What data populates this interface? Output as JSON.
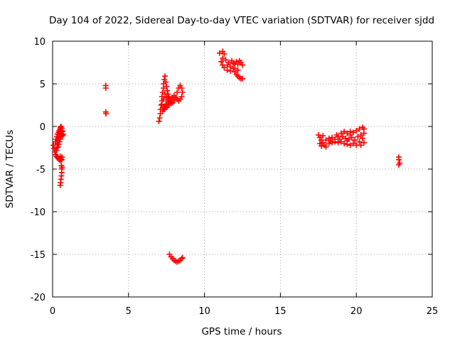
{
  "chart_data": {
    "type": "scatter",
    "title": "Day 104 of 2022, Sidereal Day-to-day VTEC variation (SDTVAR) for receiver sjdd",
    "xlabel": "GPS time / hours",
    "ylabel": "SDTVAR / TECUs",
    "xlim": [
      0,
      25
    ],
    "ylim": [
      -20,
      10
    ],
    "xticks": [
      "0",
      "5",
      "10",
      "15",
      "20",
      "25"
    ],
    "yticks": [
      "-20",
      "-15",
      "-10",
      "-5",
      "0",
      "5",
      "10"
    ],
    "grid": true,
    "marker": "plus",
    "color": "#ff0000",
    "points": [
      [
        0.05,
        -2.2
      ],
      [
        0.1,
        -2.6
      ],
      [
        0.15,
        -3.0
      ],
      [
        0.2,
        -3.3
      ],
      [
        0.25,
        -3.5
      ],
      [
        0.3,
        -3.6
      ],
      [
        0.35,
        -3.7
      ],
      [
        0.4,
        -3.8
      ],
      [
        0.45,
        -3.9
      ],
      [
        0.5,
        -4.0
      ],
      [
        0.18,
        -1.8
      ],
      [
        0.22,
        -1.5
      ],
      [
        0.28,
        -1.2
      ],
      [
        0.32,
        -0.9
      ],
      [
        0.38,
        -0.7
      ],
      [
        0.42,
        -0.5
      ],
      [
        0.48,
        -0.3
      ],
      [
        0.52,
        -0.1
      ],
      [
        0.55,
        0.0
      ],
      [
        0.6,
        -0.2
      ],
      [
        0.3,
        -2.0
      ],
      [
        0.35,
        -1.6
      ],
      [
        0.4,
        -1.3
      ],
      [
        0.45,
        -1.0
      ],
      [
        0.5,
        -0.8
      ],
      [
        0.55,
        -0.6
      ],
      [
        0.6,
        -0.5
      ],
      [
        0.65,
        -0.6
      ],
      [
        0.35,
        -2.4
      ],
      [
        0.4,
        -2.1
      ],
      [
        0.45,
        -1.8
      ],
      [
        0.5,
        -1.5
      ],
      [
        0.55,
        -1.2
      ],
      [
        0.6,
        -1.0
      ],
      [
        0.25,
        -2.8
      ],
      [
        0.3,
        -2.5
      ],
      [
        0.65,
        -1.1
      ],
      [
        0.7,
        -0.9
      ],
      [
        0.5,
        -3.5
      ],
      [
        0.55,
        -3.8
      ],
      [
        0.6,
        -3.9
      ],
      [
        0.62,
        -3.6
      ],
      [
        0.58,
        -4.6
      ],
      [
        0.6,
        -5.0
      ],
      [
        0.6,
        -5.4
      ],
      [
        0.58,
        -5.8
      ],
      [
        0.55,
        -6.2
      ],
      [
        0.52,
        -6.6
      ],
      [
        0.5,
        -6.9
      ],
      [
        0.62,
        -4.8
      ],
      [
        3.5,
        4.8
      ],
      [
        3.5,
        4.5
      ],
      [
        3.5,
        1.7
      ],
      [
        3.52,
        1.5
      ],
      [
        7.0,
        0.6
      ],
      [
        7.05,
        1.0
      ],
      [
        7.1,
        1.5
      ],
      [
        7.1,
        2.0
      ],
      [
        7.15,
        2.5
      ],
      [
        7.2,
        3.0
      ],
      [
        7.2,
        3.5
      ],
      [
        7.25,
        4.0
      ],
      [
        7.3,
        4.5
      ],
      [
        7.3,
        5.0
      ],
      [
        7.35,
        5.5
      ],
      [
        7.4,
        5.9
      ],
      [
        7.45,
        5.2
      ],
      [
        7.5,
        4.7
      ],
      [
        7.55,
        4.2
      ],
      [
        7.6,
        3.8
      ],
      [
        7.65,
        3.5
      ],
      [
        7.7,
        3.2
      ],
      [
        7.75,
        2.9
      ],
      [
        7.8,
        2.7
      ],
      [
        7.3,
        2.2
      ],
      [
        7.4,
        2.4
      ],
      [
        7.5,
        2.6
      ],
      [
        7.6,
        2.8
      ],
      [
        7.7,
        3.0
      ],
      [
        7.8,
        3.2
      ],
      [
        7.9,
        3.4
      ],
      [
        8.0,
        3.6
      ],
      [
        8.1,
        3.4
      ],
      [
        8.2,
        3.2
      ],
      [
        8.3,
        3.0
      ],
      [
        8.4,
        3.2
      ],
      [
        8.5,
        3.5
      ],
      [
        8.55,
        4.0
      ],
      [
        8.5,
        4.5
      ],
      [
        8.4,
        4.8
      ],
      [
        8.3,
        4.5
      ],
      [
        8.2,
        4.0
      ],
      [
        7.9,
        2.8
      ],
      [
        8.0,
        3.0
      ],
      [
        7.25,
        1.8
      ],
      [
        7.35,
        2.0
      ],
      [
        7.45,
        2.2
      ],
      [
        7.55,
        2.3
      ],
      [
        7.65,
        2.5
      ],
      [
        7.2,
        2.6
      ],
      [
        7.3,
        3.2
      ],
      [
        7.4,
        3.8
      ],
      [
        7.5,
        3.4
      ],
      [
        7.6,
        3.0
      ],
      [
        7.7,
        -15.0
      ],
      [
        7.8,
        -15.3
      ],
      [
        7.9,
        -15.5
      ],
      [
        8.0,
        -15.7
      ],
      [
        8.1,
        -15.8
      ],
      [
        8.2,
        -15.9
      ],
      [
        8.3,
        -15.8
      ],
      [
        8.4,
        -15.7
      ],
      [
        8.5,
        -15.5
      ],
      [
        8.55,
        -15.4
      ],
      [
        11.0,
        8.6
      ],
      [
        11.2,
        8.8
      ],
      [
        11.3,
        8.5
      ],
      [
        11.2,
        8.0
      ],
      [
        11.1,
        7.6
      ],
      [
        11.2,
        7.2
      ],
      [
        11.3,
        6.9
      ],
      [
        11.5,
        6.6
      ],
      [
        11.7,
        6.5
      ],
      [
        11.9,
        6.8
      ],
      [
        12.0,
        7.3
      ],
      [
        12.1,
        7.6
      ],
      [
        12.2,
        7.3
      ],
      [
        12.3,
        7.7
      ],
      [
        12.4,
        7.5
      ],
      [
        12.5,
        7.2
      ],
      [
        11.5,
        7.2
      ],
      [
        11.7,
        7.0
      ],
      [
        11.9,
        7.4
      ],
      [
        12.0,
        6.8
      ],
      [
        12.0,
        6.4
      ],
      [
        12.1,
        6.1
      ],
      [
        12.2,
        5.9
      ],
      [
        12.3,
        5.7
      ],
      [
        12.4,
        5.6
      ],
      [
        12.5,
        5.6
      ],
      [
        11.6,
        7.5
      ],
      [
        11.8,
        7.7
      ],
      [
        11.4,
        7.8
      ],
      [
        12.2,
        6.6
      ],
      [
        17.5,
        -1.0
      ],
      [
        17.6,
        -1.3
      ],
      [
        17.7,
        -1.6
      ],
      [
        17.8,
        -1.9
      ],
      [
        17.9,
        -2.2
      ],
      [
        18.0,
        -2.4
      ],
      [
        17.6,
        -2.0
      ],
      [
        17.7,
        -2.3
      ],
      [
        18.0,
        -1.6
      ],
      [
        18.2,
        -1.4
      ],
      [
        18.4,
        -1.3
      ],
      [
        18.6,
        -1.5
      ],
      [
        18.8,
        -1.2
      ],
      [
        19.0,
        -0.8
      ],
      [
        19.2,
        -0.6
      ],
      [
        19.4,
        -0.8
      ],
      [
        19.6,
        -1.0
      ],
      [
        19.8,
        -0.7
      ],
      [
        20.0,
        -0.5
      ],
      [
        20.2,
        -0.3
      ],
      [
        20.4,
        -0.1
      ],
      [
        20.5,
        -0.3
      ],
      [
        20.5,
        -0.8
      ],
      [
        20.4,
        -1.4
      ],
      [
        20.5,
        -1.9
      ],
      [
        20.3,
        -2.2
      ],
      [
        20.0,
        -2.2
      ],
      [
        19.8,
        -2.0
      ],
      [
        19.6,
        -2.2
      ],
      [
        19.4,
        -2.1
      ],
      [
        19.2,
        -2.0
      ],
      [
        19.0,
        -1.8
      ],
      [
        18.8,
        -1.9
      ],
      [
        18.6,
        -1.8
      ],
      [
        18.4,
        -1.9
      ],
      [
        18.2,
        -2.0
      ],
      [
        19.5,
        -1.5
      ],
      [
        19.7,
        -1.3
      ],
      [
        19.9,
        -1.6
      ],
      [
        20.1,
        -1.2
      ],
      [
        19.3,
        -1.4
      ],
      [
        19.1,
        -1.2
      ],
      [
        20.2,
        -1.8
      ],
      [
        19.6,
        -0.6
      ],
      [
        18.9,
        -1.5
      ],
      [
        18.3,
        -1.7
      ],
      [
        17.8,
        -1.1
      ],
      [
        20.3,
        -1.0
      ],
      [
        19.4,
        -1.7
      ],
      [
        18.7,
        -1.0
      ],
      [
        22.8,
        -3.6
      ],
      [
        22.8,
        -3.9
      ],
      [
        22.85,
        -4.3
      ],
      [
        22.8,
        -4.5
      ]
    ]
  }
}
